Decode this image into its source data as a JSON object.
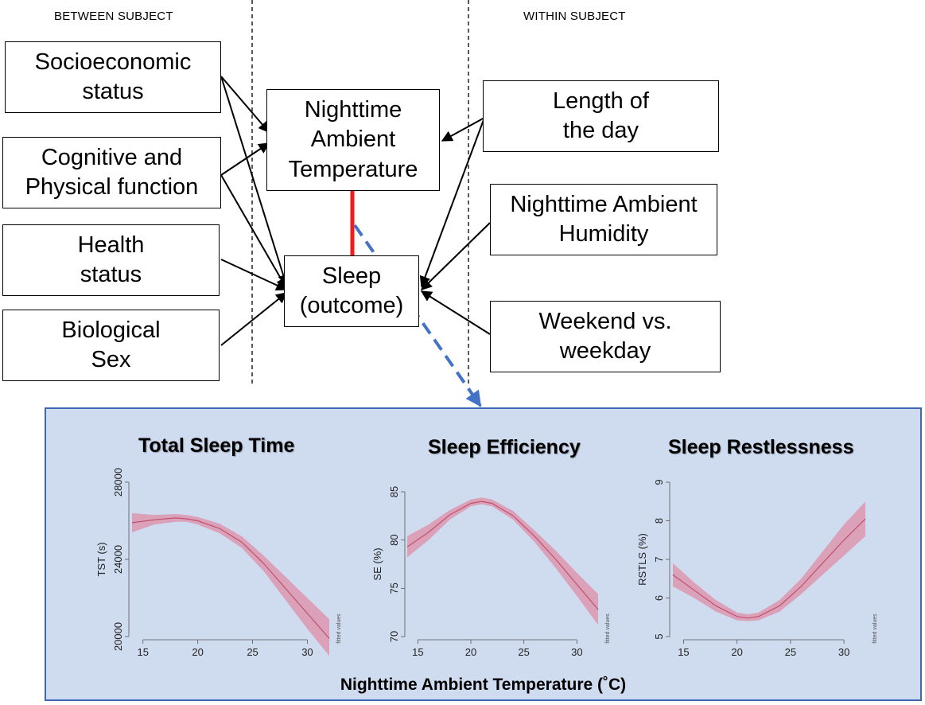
{
  "headers": {
    "left": "BETWEEN SUBJECT",
    "right": "WITHIN SUBJECT"
  },
  "boxes": {
    "socioeconomic": "Socioeconomic\nstatus",
    "cognitive": "Cognitive and\nPhysical function",
    "health": "Health\nstatus",
    "sex": "Biological\nSex",
    "temperature": "Nighttime\nAmbient\nTemperature",
    "sleep": "Sleep\n(outcome)",
    "daylength": "Length of\nthe day",
    "humidity": "Nighttime Ambient\nHumidity",
    "weekend": "Weekend vs.\nweekday"
  },
  "colors": {
    "link_red": "#ee1c1c",
    "arrow_blue": "#4472c4",
    "panel_bg": "#cfdbef",
    "panel_border": "#3f67b5",
    "band": "#dba1b8",
    "fit_line": "#c0506e"
  },
  "panel": {
    "x_title": "Nighttime Ambient Temperature (˚C)"
  },
  "chart_data": [
    {
      "type": "line",
      "title": "Total Sleep Time",
      "ylabel": "TST (s)",
      "side_label": "fitted values",
      "xlim": [
        14,
        32
      ],
      "ylim": [
        20000,
        28000
      ],
      "xticks": [
        15,
        20,
        25,
        30
      ],
      "yticks": [
        20000,
        24000,
        28000
      ],
      "x": [
        14,
        16,
        18,
        19,
        20,
        22,
        24,
        26,
        28,
        30,
        32
      ],
      "fit": [
        25900,
        26050,
        26150,
        26100,
        26000,
        25600,
        24900,
        23800,
        22500,
        21200,
        19900
      ],
      "lower": [
        25400,
        25800,
        25950,
        25950,
        25800,
        25350,
        24600,
        23400,
        21900,
        20400,
        19000
      ],
      "upper": [
        26400,
        26300,
        26350,
        26300,
        26200,
        25850,
        25200,
        24200,
        23100,
        22000,
        20900
      ]
    },
    {
      "type": "line",
      "title": "Sleep Efficiency",
      "ylabel": "SE (%)",
      "side_label": "fitted values",
      "xlim": [
        14,
        32
      ],
      "ylim": [
        70,
        85
      ],
      "xticks": [
        15,
        20,
        25,
        30
      ],
      "yticks": [
        70,
        75,
        80,
        85
      ],
      "x": [
        14,
        16,
        18,
        20,
        21,
        22,
        24,
        26,
        28,
        30,
        32
      ],
      "fit": [
        79.3,
        80.8,
        82.6,
        83.8,
        84.0,
        83.8,
        82.5,
        80.4,
        78.0,
        75.4,
        72.8
      ],
      "lower": [
        78.2,
        80.0,
        82.1,
        83.5,
        83.7,
        83.5,
        82.1,
        79.8,
        77.1,
        74.2,
        71.2
      ],
      "upper": [
        80.4,
        81.6,
        83.1,
        84.2,
        84.4,
        84.2,
        83.0,
        81.0,
        78.9,
        76.6,
        74.4
      ]
    },
    {
      "type": "line",
      "title": "Sleep Restlessness",
      "ylabel": "RSTLS (%)",
      "side_label": "fitted values",
      "xlim": [
        14,
        32
      ],
      "ylim": [
        5,
        9
      ],
      "xticks": [
        15,
        20,
        25,
        30
      ],
      "yticks": [
        5,
        6,
        7,
        8,
        9
      ],
      "x": [
        14,
        16,
        18,
        20,
        21,
        22,
        24,
        26,
        28,
        30,
        32
      ],
      "fit": [
        6.6,
        6.2,
        5.8,
        5.52,
        5.48,
        5.52,
        5.8,
        6.3,
        6.9,
        7.5,
        8.05
      ],
      "lower": [
        6.3,
        6.0,
        5.65,
        5.42,
        5.4,
        5.42,
        5.65,
        6.1,
        6.6,
        7.1,
        7.6
      ],
      "upper": [
        6.9,
        6.4,
        5.95,
        5.62,
        5.58,
        5.62,
        5.95,
        6.5,
        7.2,
        7.9,
        8.5
      ]
    }
  ]
}
